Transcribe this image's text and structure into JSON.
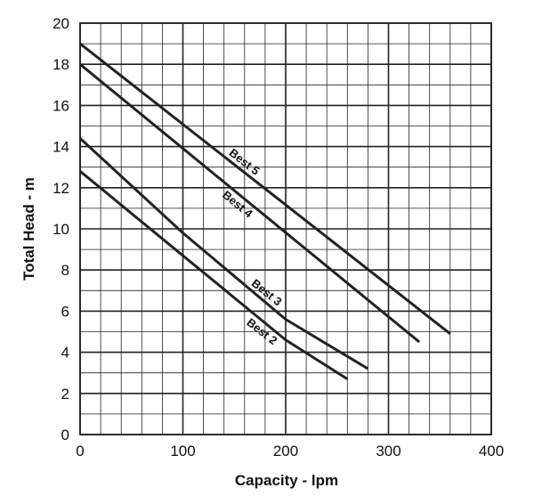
{
  "chart_data": {
    "type": "line",
    "title": "",
    "xlabel": "Capacity - lpm",
    "ylabel": "Total Head - m",
    "xlim": [
      0,
      400
    ],
    "ylim": [
      0,
      20
    ],
    "x_major_ticks": [
      0,
      100,
      200,
      300,
      400
    ],
    "y_major_ticks": [
      0,
      2,
      4,
      6,
      8,
      10,
      12,
      14,
      16,
      18,
      20
    ],
    "x_minor_step": 20,
    "y_minor_step": 1,
    "grid": true,
    "legend": "none",
    "line_color": "#222222",
    "series": [
      {
        "name": "Best 5",
        "x": [
          0,
          360
        ],
        "y": [
          19.0,
          4.9
        ]
      },
      {
        "name": "Best 4",
        "x": [
          0,
          330
        ],
        "y": [
          18.0,
          4.5
        ]
      },
      {
        "name": "Best 3",
        "x": [
          0,
          100,
          200,
          280
        ],
        "y": [
          14.4,
          9.8,
          5.6,
          3.2
        ]
      },
      {
        "name": "Best 2",
        "x": [
          0,
          100,
          200,
          260
        ],
        "y": [
          12.8,
          8.7,
          4.6,
          2.7
        ]
      }
    ]
  }
}
